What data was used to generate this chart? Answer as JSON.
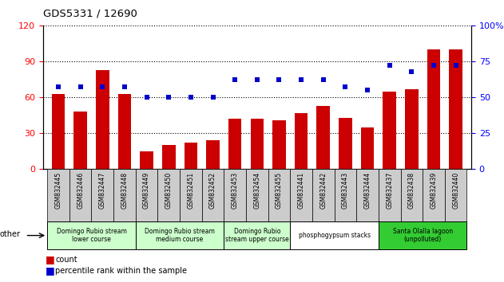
{
  "title": "GDS5331 / 12690",
  "samples": [
    "GSM832445",
    "GSM832446",
    "GSM832447",
    "GSM832448",
    "GSM832449",
    "GSM832450",
    "GSM832451",
    "GSM832452",
    "GSM832453",
    "GSM832454",
    "GSM832455",
    "GSM832441",
    "GSM832442",
    "GSM832443",
    "GSM832444",
    "GSM832437",
    "GSM832438",
    "GSM832439",
    "GSM832440"
  ],
  "counts": [
    63,
    48,
    83,
    63,
    15,
    20,
    22,
    24,
    42,
    42,
    41,
    47,
    53,
    43,
    35,
    65,
    67,
    100,
    100
  ],
  "percentiles": [
    57,
    57,
    57,
    57,
    50,
    50,
    50,
    50,
    62,
    62,
    62,
    62,
    62,
    57,
    55,
    72,
    68,
    72,
    72
  ],
  "bar_color": "#cc0000",
  "dot_color": "#0000cc",
  "ylim_left": [
    0,
    120
  ],
  "ylim_right": [
    0,
    100
  ],
  "yticks_left": [
    0,
    30,
    60,
    90,
    120
  ],
  "yticks_right": [
    0,
    25,
    50,
    75,
    100
  ],
  "groups": [
    {
      "label": "Domingo Rubio stream\nlower course",
      "start": 0,
      "end": 3,
      "color": "#ccffcc"
    },
    {
      "label": "Domingo Rubio stream\nmedium course",
      "start": 4,
      "end": 7,
      "color": "#ccffcc"
    },
    {
      "label": "Domingo Rubio\nstream upper course",
      "start": 8,
      "end": 10,
      "color": "#ccffcc"
    },
    {
      "label": "phosphogypsum stacks",
      "start": 11,
      "end": 14,
      "color": "#ffffff"
    },
    {
      "label": "Santa Olalla lagoon\n(unpolluted)",
      "start": 15,
      "end": 18,
      "color": "#33cc33"
    }
  ],
  "other_label": "other",
  "legend_count_label": "count",
  "legend_pct_label": "percentile rank within the sample",
  "bar_width": 0.6,
  "background_color": "#ffffff",
  "xtick_bg": "#cccccc"
}
